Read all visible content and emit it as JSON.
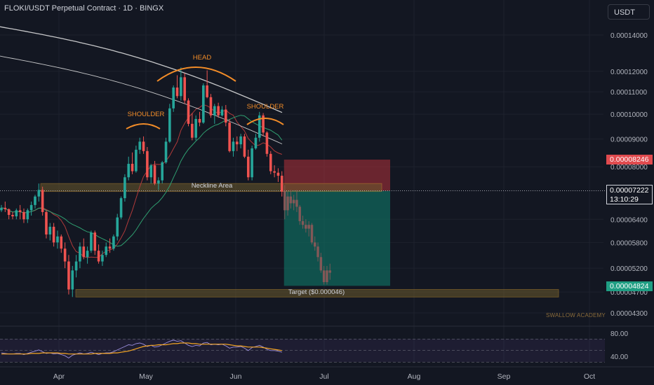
{
  "header": {
    "title": "FLOKI/USDT Perpetual Contract · 1D · BINGX",
    "currency_button": "USDT"
  },
  "price_tags": {
    "stop_price": "0.00008246",
    "current_price": "0.00007222",
    "countdown": "13:10:29",
    "target_price": "0.00004824"
  },
  "watermark": "SWALLOW ACADEMY",
  "colors": {
    "background": "#131722",
    "up_candle": "#26a69a",
    "down_candle": "#ef5350",
    "pattern_orange": "#f28c28",
    "stop_zone": "#b2323a",
    "target_zone": "#0f6b5e",
    "sma_white": "#e6e6e6",
    "rsi_line": "#9c8fe0",
    "rsi_ma": "#f5a623"
  },
  "chart_data": {
    "type": "candlestick",
    "timeframe": "1D",
    "y_axis_ticks": [
      0.00014,
      0.00012,
      0.00011,
      0.0001,
      9e-05,
      8e-05,
      6.4e-05,
      5.8e-05,
      5.2e-05,
      4.7e-05,
      4.3e-05
    ],
    "y_axis_labels": [
      "0.00014000",
      "0.00012000",
      "0.00011000",
      "0.00010000",
      "0.00009000",
      "0.00008000",
      "0.00006400",
      "0.00005800",
      "0.00005200",
      "0.00004700",
      "0.00004300"
    ],
    "y_scale": "log",
    "x_axis_labels": [
      "Apr",
      "May",
      "Jun",
      "Jul",
      "Aug",
      "Sep",
      "Oct"
    ],
    "annotations": {
      "left_shoulder": "SHOULDER",
      "head": "HEAD",
      "right_shoulder": "SHOULDER",
      "neckline": "Neckline Area",
      "target": "Target ($0.000046)"
    },
    "neckline_zone": [
      7.2e-05,
      7.45e-05
    ],
    "target_zone": [
      4.6e-05,
      4.75e-05
    ],
    "short_position": {
      "entry": 7.222e-05,
      "stop": 8.246e-05,
      "target": 4.824e-05
    },
    "candles": [
      [
        6.65e-05,
        6.8e-05,
        6.6e-05,
        6.72e-05
      ],
      [
        6.72e-05,
        6.9e-05,
        6.6e-05,
        6.68e-05
      ],
      [
        6.68e-05,
        6.7e-05,
        6.4e-05,
        6.52e-05
      ],
      [
        6.52e-05,
        6.6e-05,
        6.4e-05,
        6.48e-05
      ],
      [
        6.48e-05,
        6.7e-05,
        6.4e-05,
        6.65e-05
      ],
      [
        6.65e-05,
        6.8e-05,
        6.4e-05,
        6.6e-05
      ],
      [
        6.6e-05,
        6.7e-05,
        6.3e-05,
        6.4e-05
      ],
      [
        6.4e-05,
        6.7e-05,
        6.3e-05,
        6.65e-05
      ],
      [
        6.65e-05,
        6.9e-05,
        6.5e-05,
        6.8e-05
      ],
      [
        6.8e-05,
        7.1e-05,
        6.7e-05,
        7.05e-05
      ],
      [
        7.05e-05,
        7.45e-05,
        6.9e-05,
        7.25e-05
      ],
      [
        7.25e-05,
        7.35e-05,
        6.5e-05,
        6.6e-05
      ],
      [
        6.6e-05,
        6.65e-05,
        5.9e-05,
        6e-05
      ],
      [
        6e-05,
        6.3e-05,
        5.85e-05,
        6.2e-05
      ],
      [
        6.2e-05,
        6.3e-05,
        5.7e-05,
        5.8e-05
      ],
      [
        5.8e-05,
        6.1e-05,
        5.65e-05,
        5.95e-05
      ],
      [
        5.95e-05,
        6e-05,
        5.55e-05,
        5.65e-05
      ],
      [
        5.65e-05,
        5.8e-05,
        5.2e-05,
        5.35e-05
      ],
      [
        5.35e-05,
        5.5e-05,
        4.65e-05,
        4.75e-05
      ],
      [
        4.75e-05,
        5.25e-05,
        4.6e-05,
        5.15e-05
      ],
      [
        5.15e-05,
        5.5e-05,
        5e-05,
        5.35e-05
      ],
      [
        5.35e-05,
        5.8e-05,
        5.2e-05,
        5.7e-05
      ],
      [
        5.7e-05,
        5.9e-05,
        5.4e-05,
        5.45e-05
      ],
      [
        5.45e-05,
        5.7e-05,
        5.3e-05,
        5.6e-05
      ],
      [
        5.6e-05,
        6.1e-05,
        5.55e-05,
        6.05e-05
      ],
      [
        6.05e-05,
        6.1e-05,
        5.5e-05,
        5.6e-05
      ],
      [
        5.6e-05,
        5.75e-05,
        5.3e-05,
        5.35e-05
      ],
      [
        5.35e-05,
        5.6e-05,
        5.25e-05,
        5.5e-05
      ],
      [
        5.5e-05,
        5.8e-05,
        5.45e-05,
        5.7e-05
      ],
      [
        5.7e-05,
        5.9e-05,
        5.55e-05,
        5.65e-05
      ],
      [
        5.65e-05,
        6e-05,
        5.6e-05,
        5.95e-05
      ],
      [
        5.95e-05,
        6.55e-05,
        5.85e-05,
        6.45e-05
      ],
      [
        6.45e-05,
        7.05e-05,
        6.4e-05,
        7e-05
      ],
      [
        7e-05,
        7.75e-05,
        6.9e-05,
        7.65e-05
      ],
      [
        7.65e-05,
        8.35e-05,
        7.55e-05,
        8.1e-05
      ],
      [
        8.1e-05,
        8.5e-05,
        7.75e-05,
        7.85e-05
      ],
      [
        7.85e-05,
        8.75e-05,
        7.8e-05,
        8.6e-05
      ],
      [
        8.6e-05,
        9.05e-05,
        8.45e-05,
        8.9e-05
      ],
      [
        8.9e-05,
        9.1e-05,
        8.45e-05,
        8.55e-05
      ],
      [
        8.55e-05,
        8.7e-05,
        7.55e-05,
        7.65e-05
      ],
      [
        7.65e-05,
        8.1e-05,
        7.45e-05,
        8.05e-05
      ],
      [
        8.05e-05,
        8.2e-05,
        7.4e-05,
        7.45e-05
      ],
      [
        7.45e-05,
        7.65e-05,
        7.25e-05,
        7.55e-05
      ],
      [
        7.55e-05,
        8.2e-05,
        7.45e-05,
        8.15e-05
      ],
      [
        8.15e-05,
        9.05e-05,
        8.1e-05,
        8.9e-05
      ],
      [
        8.9e-05,
        0.0001045,
        8.85e-05,
        0.0001025
      ],
      [
        0.0001025,
        0.000113,
        0.000101,
        0.000112
      ],
      [
        0.000112,
        0.000118,
        0.000107,
        0.000108
      ],
      [
        0.000108,
        0.000122,
        0.000106,
        0.000117
      ],
      [
        0.000117,
        0.000119,
        0.0001045,
        0.000106
      ],
      [
        0.000106,
        0.000107,
        9.5e-05,
        9.6e-05
      ],
      [
        9.6e-05,
        0.0001005,
        8.95e-05,
        9.05e-05
      ],
      [
        9.05e-05,
        9.95e-05,
        8.95e-05,
        9.8e-05
      ],
      [
        9.8e-05,
        0.000101,
        9.5e-05,
        9.65e-05
      ],
      [
        9.65e-05,
        0.000114,
        9.6e-05,
        0.000113
      ],
      [
        0.000113,
        0.0001205,
        0.000107,
        0.0001075
      ],
      [
        0.0001075,
        0.000109,
        9.85e-05,
        9.95e-05
      ],
      [
        9.95e-05,
        0.0001045,
        9.6e-05,
        0.0001035
      ],
      [
        0.0001035,
        0.000105,
        9.85e-05,
        9.95e-05
      ],
      [
        9.95e-05,
        0.0001035,
        9.9e-05,
        0.000102
      ],
      [
        0.000102,
        0.000104,
        9.5e-05,
        9.65e-05
      ],
      [
        9.65e-05,
        9.8e-05,
        8.5e-05,
        8.55e-05
      ],
      [
        8.55e-05,
        9.05e-05,
        8.35e-05,
        8.9e-05
      ],
      [
        8.9e-05,
        9.1e-05,
        8.55e-05,
        8.8e-05
      ],
      [
        8.8e-05,
        9.2e-05,
        8.65e-05,
        9.1e-05
      ],
      [
        9.1e-05,
        9.2e-05,
        8.3e-05,
        8.35e-05
      ],
      [
        8.35e-05,
        8.6e-05,
        7.55e-05,
        7.65e-05
      ],
      [
        7.65e-05,
        8.75e-05,
        7.55e-05,
        8.65e-05
      ],
      [
        8.65e-05,
        9.2e-05,
        8.6e-05,
        9.05e-05
      ],
      [
        9.05e-05,
        0.000101,
        8.9e-05,
        9.95e-05
      ],
      [
        9.95e-05,
        0.0001005,
        9.1e-05,
        9.25e-05
      ],
      [
        9.25e-05,
        9.3e-05,
        8.35e-05,
        8.45e-05
      ],
      [
        8.45e-05,
        8.55e-05,
        7.75e-05,
        7.85e-05
      ],
      [
        7.85e-05,
        8.05e-05,
        7.65e-05,
        7.8e-05
      ],
      [
        7.8e-05,
        7.95e-05,
        7.5e-05,
        7.7e-05
      ],
      [
        7.7e-05,
        7.85e-05,
        7.05e-05,
        7.2e-05
      ]
    ],
    "projection_candles": [
      [
        7.22e-05,
        7.4e-05,
        6.4e-05,
        6.65e-05
      ],
      [
        6.65e-05,
        7.2e-05,
        6.5e-05,
        7.05e-05
      ],
      [
        7.05e-05,
        7.25e-05,
        6.7e-05,
        6.85e-05
      ],
      [
        6.85e-05,
        7.1e-05,
        6.65e-05,
        6.95e-05
      ],
      [
        6.95e-05,
        7.25e-05,
        6.6e-05,
        6.75e-05
      ],
      [
        6.75e-05,
        6.8e-05,
        6.25e-05,
        6.35e-05
      ],
      [
        6.35e-05,
        6.5e-05,
        6.15e-05,
        6.25e-05
      ],
      [
        6.25e-05,
        6.4e-05,
        6.05e-05,
        6.15e-05
      ],
      [
        6.15e-05,
        6.35e-05,
        5.95e-05,
        6.25e-05
      ],
      [
        6.25e-05,
        6.3e-05,
        5.75e-05,
        5.8e-05
      ],
      [
        5.8e-05,
        5.95e-05,
        5.6e-05,
        5.7e-05
      ],
      [
        5.7e-05,
        5.8e-05,
        5.35e-05,
        5.45e-05
      ],
      [
        5.45e-05,
        5.55e-05,
        5.1e-05,
        5.15e-05
      ],
      [
        5.15e-05,
        5.25e-05,
        4.85e-05,
        4.9e-05
      ],
      [
        4.9e-05,
        5.25e-05,
        4.85e-05,
        5.15e-05
      ],
      [
        5.15e-05,
        5.3e-05,
        4.95e-05,
        5.1e-05
      ]
    ],
    "rsi": {
      "ticks": [
        80,
        40
      ],
      "tick_labels": [
        "80.00",
        "40.00"
      ],
      "values": [
        46,
        45,
        44,
        44,
        45,
        45,
        43,
        45,
        47,
        49,
        51,
        48,
        45,
        46,
        44,
        45,
        43,
        41,
        37,
        42,
        44,
        46,
        44,
        45,
        47,
        45,
        43,
        45,
        46,
        46,
        48,
        51,
        54,
        57,
        60,
        59,
        62,
        63,
        61,
        57,
        59,
        56,
        57,
        60,
        63,
        66,
        68,
        66,
        67,
        63,
        59,
        57,
        59,
        58,
        63,
        64,
        60,
        61,
        60,
        61,
        58,
        54,
        56,
        56,
        57,
        54,
        50,
        55,
        57,
        59,
        56,
        52,
        50,
        50,
        49,
        47
      ],
      "ma_values": [
        44,
        44,
        44,
        44,
        44,
        44,
        44,
        44,
        45,
        45,
        45,
        46,
        46,
        46,
        46,
        46,
        45,
        45,
        44,
        44,
        44,
        44,
        44,
        44,
        44,
        45,
        45,
        45,
        45,
        45,
        46,
        46,
        47,
        48,
        49,
        51,
        53,
        55,
        57,
        58,
        59,
        59,
        60,
        60,
        60,
        61,
        62,
        62,
        63,
        63,
        63,
        62,
        62,
        61,
        61,
        61,
        61,
        61,
        61,
        61,
        61,
        60,
        59,
        58,
        58,
        57,
        56,
        56,
        56,
        56,
        55,
        54,
        53,
        52,
        51,
        50
      ]
    }
  }
}
